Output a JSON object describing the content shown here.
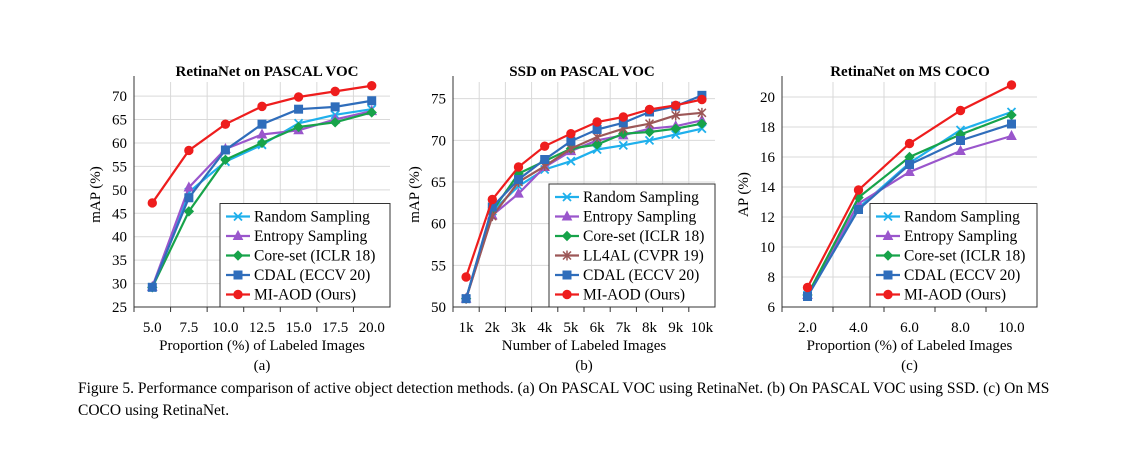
{
  "colors": {
    "Random Sampling": "#1fb0ec",
    "Entropy Sampling": "#9a56cc",
    "Core-set (ICLR 18)": "#17a34a",
    "LL4AL (CVPR 19)": "#9c5757",
    "CDAL (ECCV 20)": "#2f6dbb",
    "MI-AOD (Ours)": "#ee1d1d"
  },
  "markers": {
    "Random Sampling": "x",
    "Entropy Sampling": "triangle",
    "Core-set (ICLR 18)": "diamond",
    "LL4AL (CVPR 19)": "star",
    "CDAL (ECCV 20)": "square",
    "MI-AOD (Ours)": "circle"
  },
  "chart_data": [
    {
      "type": "line",
      "title": "RetinaNet on PASCAL VOC",
      "xlabel": "Proportion (%) of Labeled Images",
      "ylabel": "mAP (%)",
      "sublabel": "(a)",
      "categories": [
        "5.0",
        "7.5",
        "10.0",
        "12.5",
        "15.0",
        "17.5",
        "20.0"
      ],
      "ylim": [
        25,
        73
      ],
      "yticks": [
        25,
        30,
        35,
        40,
        45,
        50,
        55,
        60,
        65,
        70
      ],
      "grid": true,
      "legend": "bottom-right",
      "series": [
        {
          "name": "Random Sampling",
          "values": [
            29.2,
            49.5,
            56.0,
            59.6,
            64.2,
            66.0,
            67.2
          ]
        },
        {
          "name": "Entropy Sampling",
          "values": [
            29.3,
            50.5,
            58.7,
            61.8,
            62.7,
            65.0,
            66.8
          ]
        },
        {
          "name": "Core-set (ICLR 18)",
          "values": [
            29.2,
            45.4,
            56.4,
            60.0,
            63.4,
            64.4,
            66.5
          ]
        },
        {
          "name": "CDAL (ECCV 20)",
          "values": [
            29.2,
            48.3,
            58.5,
            64.0,
            67.2,
            67.7,
            69.0
          ]
        },
        {
          "name": "MI-AOD (Ours)",
          "values": [
            47.2,
            58.4,
            64.0,
            67.8,
            69.8,
            71.0,
            72.2
          ]
        }
      ]
    },
    {
      "type": "line",
      "title": "SSD on PASCAL VOC",
      "xlabel": "Number of Labeled Images",
      "ylabel": "mAP (%)",
      "sublabel": "(b)",
      "categories": [
        "1k",
        "2k",
        "3k",
        "4k",
        "5k",
        "6k",
        "7k",
        "8k",
        "9k",
        "10k"
      ],
      "ylim": [
        50,
        77
      ],
      "yticks": [
        50,
        55,
        60,
        65,
        70,
        75
      ],
      "grid": true,
      "legend": "bottom-right",
      "series": [
        {
          "name": "Random Sampling",
          "values": [
            51.0,
            61.5,
            64.5,
            66.5,
            67.5,
            68.9,
            69.4,
            70.0,
            70.7,
            71.4
          ]
        },
        {
          "name": "Entropy Sampling",
          "values": [
            51.0,
            61.0,
            63.6,
            66.8,
            68.7,
            70.0,
            70.6,
            71.4,
            71.7,
            72.4
          ]
        },
        {
          "name": "Core-set (ICLR 18)",
          "values": [
            51.0,
            61.5,
            66.0,
            67.5,
            69.0,
            69.5,
            70.8,
            71.0,
            71.4,
            72.0
          ]
        },
        {
          "name": "LL4AL (CVPR 19)",
          "values": [
            51.0,
            60.9,
            65.0,
            66.9,
            69.0,
            70.4,
            71.4,
            72.0,
            73.0,
            73.3
          ]
        },
        {
          "name": "CDAL (ECCV 20)",
          "values": [
            51.0,
            62.0,
            65.3,
            67.7,
            69.9,
            71.3,
            72.1,
            73.4,
            74.1,
            75.4
          ]
        },
        {
          "name": "MI-AOD (Ours)",
          "values": [
            53.6,
            62.9,
            66.8,
            69.3,
            70.8,
            72.2,
            72.8,
            73.7,
            74.2,
            74.9
          ]
        }
      ]
    },
    {
      "type": "line",
      "title": "RetinaNet on MS COCO",
      "xlabel": "Proportion (%) of Labeled Images",
      "ylabel": "AP (%)",
      "sublabel": "(c)",
      "categories": [
        "2.0",
        "4.0",
        "6.0",
        "8.0",
        "10.0"
      ],
      "ylim": [
        6,
        21
      ],
      "yticks": [
        6,
        8,
        10,
        12,
        14,
        16,
        18,
        20
      ],
      "grid": true,
      "legend": "bottom-right",
      "series": [
        {
          "name": "Random Sampling",
          "values": [
            6.8,
            12.6,
            15.6,
            17.8,
            19.0
          ]
        },
        {
          "name": "Entropy Sampling",
          "values": [
            6.8,
            12.9,
            15.0,
            16.4,
            17.4
          ]
        },
        {
          "name": "Core-set (ICLR 18)",
          "values": [
            6.8,
            13.3,
            16.0,
            17.5,
            18.8
          ]
        },
        {
          "name": "CDAL (ECCV 20)",
          "values": [
            6.7,
            12.5,
            15.5,
            17.1,
            18.2
          ]
        },
        {
          "name": "MI-AOD (Ours)",
          "values": [
            7.3,
            13.8,
            16.9,
            19.1,
            20.8
          ]
        }
      ]
    }
  ],
  "caption": "Figure 5. Performance comparison of active object detection methods.  (a) On PASCAL VOC using RetinaNet.  (b) On PASCAL VOC using SSD. (c) On MS COCO using RetinaNet."
}
